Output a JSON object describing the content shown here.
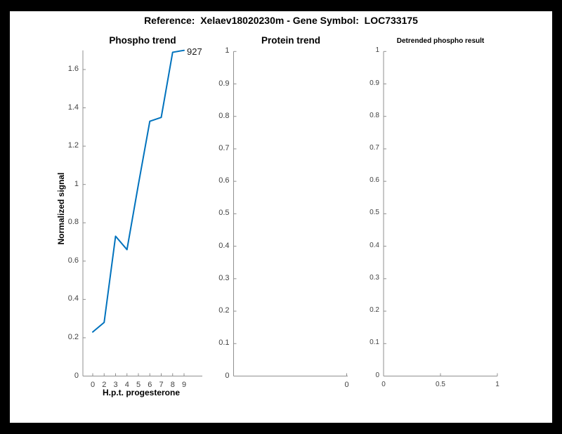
{
  "figure": {
    "title": "Reference:  Xelaev18020230m - Gene Symbol:  LOC733175",
    "background": "#000000",
    "paper_color": "#ffffff"
  },
  "colors": {
    "line": "#0072BD",
    "spine": "#8f8f8f",
    "tick_label": "#424242",
    "text": "#000000"
  },
  "chart_data": [
    {
      "id": "phospho-trend",
      "type": "line",
      "title": "Phospho trend",
      "xlabel": "H.p.t. progesterone",
      "ylabel": "Normalized signal",
      "x": [
        0,
        2,
        3,
        4,
        5,
        6,
        7,
        8,
        9
      ],
      "x_tick_labels": [
        "0",
        "2",
        "3",
        "4",
        "5",
        "6",
        "7",
        "8",
        "9"
      ],
      "values": [
        0.23,
        0.28,
        0.73,
        0.66,
        1.0,
        1.33,
        1.35,
        1.69,
        1.7
      ],
      "ylim": [
        0,
        1.7
      ],
      "y_ticks": [
        0,
        0.2,
        0.4,
        0.6,
        0.8,
        1.0,
        1.2,
        1.4,
        1.6
      ],
      "y_tick_labels": [
        "0",
        "0.2",
        "0.4",
        "0.6",
        "0.8",
        "1",
        "1.2",
        "1.4",
        "1.6"
      ],
      "annotation": "927",
      "line_color": "#0072BD",
      "grid": false,
      "legend": null
    },
    {
      "id": "protein-trend",
      "type": "line",
      "title": "Protein trend",
      "x": [],
      "values": [],
      "ylim": [
        0,
        1
      ],
      "y_ticks": [
        0,
        0.1,
        0.2,
        0.3,
        0.4,
        0.5,
        0.6,
        0.7,
        0.8,
        0.9,
        1
      ],
      "y_tick_labels": [
        "0",
        "0.1",
        "0.2",
        "0.3",
        "0.4",
        "0.5",
        "0.6",
        "0.7",
        "0.8",
        "0.9",
        "1"
      ],
      "x_tick_labels": [
        "0"
      ],
      "grid": false,
      "legend": null
    },
    {
      "id": "detrended-phospho-result",
      "type": "line",
      "title": "Detrended phospho result",
      "x": [],
      "values": [],
      "xlim": [
        0,
        1
      ],
      "x_ticks": [
        0,
        0.5,
        1
      ],
      "x_tick_labels": [
        "0",
        "0.5",
        "1"
      ],
      "ylim": [
        0,
        1
      ],
      "y_ticks": [
        0,
        0.1,
        0.2,
        0.3,
        0.4,
        0.5,
        0.6,
        0.7,
        0.8,
        0.9,
        1
      ],
      "y_tick_labels": [
        "0",
        "0.1",
        "0.2",
        "0.3",
        "0.4",
        "0.5",
        "0.6",
        "0.7",
        "0.8",
        "0.9",
        "1"
      ],
      "grid": false,
      "legend": null
    }
  ]
}
